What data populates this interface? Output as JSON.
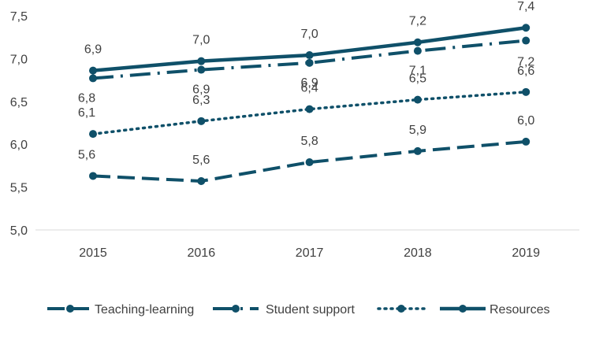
{
  "chart_data": {
    "type": "line",
    "title": "",
    "xlabel": "",
    "ylabel": "",
    "categories": [
      "2015",
      "2016",
      "2017",
      "2018",
      "2019"
    ],
    "ylim": [
      5.0,
      7.5
    ],
    "yticks": [
      5.0,
      5.5,
      6.0,
      6.5,
      7.0,
      7.5
    ],
    "ytick_labels": [
      "5,0",
      "5,5",
      "6,0",
      "6,5",
      "7,0",
      "7,5"
    ],
    "grid": false,
    "legend_position": "bottom",
    "series": [
      {
        "name": "Teaching-learning",
        "style": "dashed",
        "color": "#0f5069",
        "values": [
          5.63,
          5.57,
          5.79,
          5.92,
          6.03
        ],
        "labels": [
          "5,6",
          "5,6",
          "5,8",
          "5,9",
          "6,0"
        ]
      },
      {
        "name": "Student support",
        "style": "dash-dot",
        "color": "#0f5069",
        "values": [
          6.77,
          6.87,
          6.95,
          7.09,
          7.21
        ],
        "labels": [
          "6,8",
          "6,9",
          "6,9",
          "7,1",
          "7,2"
        ]
      },
      {
        "name": "",
        "style": "dotted",
        "color": "#0f5069",
        "values": [
          6.12,
          6.27,
          6.41,
          6.52,
          6.61
        ],
        "labels": [
          "6,1",
          "6,3",
          "6,4",
          "6,5",
          "6,6"
        ]
      },
      {
        "name": "Resources",
        "style": "solid",
        "color": "#0f5069",
        "values": [
          6.86,
          6.97,
          7.04,
          7.19,
          7.36
        ],
        "labels": [
          "6,9",
          "7,0",
          "7,0",
          "7,2",
          "7,4"
        ]
      }
    ]
  }
}
